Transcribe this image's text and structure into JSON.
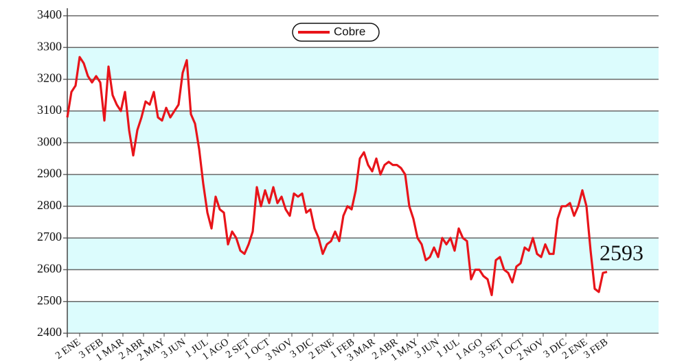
{
  "chart_data": {
    "type": "line",
    "series": [
      {
        "name": "Cobre",
        "color": "#e8141a",
        "values": [
          3080,
          3160,
          3180,
          3270,
          3250,
          3210,
          3190,
          3210,
          3190,
          3070,
          3240,
          3150,
          3120,
          3100,
          3160,
          3040,
          2960,
          3040,
          3080,
          3130,
          3120,
          3160,
          3080,
          3070,
          3110,
          3080,
          3100,
          3120,
          3220,
          3260,
          3090,
          3060,
          2980,
          2870,
          2780,
          2730,
          2830,
          2790,
          2780,
          2680,
          2720,
          2700,
          2660,
          2650,
          2680,
          2720,
          2860,
          2800,
          2850,
          2810,
          2860,
          2810,
          2830,
          2790,
          2770,
          2840,
          2830,
          2840,
          2780,
          2790,
          2730,
          2700,
          2650,
          2680,
          2690,
          2720,
          2690,
          2770,
          2800,
          2790,
          2850,
          2950,
          2970,
          2930,
          2910,
          2950,
          2900,
          2930,
          2940,
          2930,
          2930,
          2920,
          2900,
          2800,
          2760,
          2700,
          2680,
          2630,
          2640,
          2670,
          2640,
          2700,
          2680,
          2700,
          2660,
          2730,
          2700,
          2690,
          2570,
          2600,
          2600,
          2580,
          2570,
          2520,
          2630,
          2640,
          2600,
          2590,
          2560,
          2610,
          2620,
          2670,
          2660,
          2700,
          2650,
          2640,
          2680,
          2650,
          2650,
          2760,
          2800,
          2800,
          2810,
          2770,
          2800,
          2850,
          2800,
          2660,
          2540,
          2530,
          2590,
          2593
        ]
      }
    ],
    "x": [
      0,
      2,
      4,
      6,
      8,
      10,
      12,
      14,
      16,
      18,
      20,
      22,
      24,
      26,
      28,
      30,
      32,
      34,
      36,
      38,
      40,
      42,
      44,
      46,
      48,
      50,
      52,
      54,
      56,
      58,
      60,
      62,
      64,
      66,
      68,
      70,
      72,
      74,
      76,
      78,
      80,
      82,
      84,
      86,
      88,
      90,
      92,
      94,
      96,
      98,
      100,
      102,
      104,
      106,
      108,
      110,
      112,
      114,
      116,
      118,
      120,
      122,
      124,
      126,
      128,
      130,
      132,
      134,
      136,
      138,
      140,
      142,
      144,
      146,
      148,
      150,
      152,
      154,
      156,
      158,
      160,
      162,
      164,
      166,
      168,
      170,
      172,
      174,
      176,
      178,
      180,
      182,
      184,
      186,
      188,
      190,
      192,
      194,
      196,
      198,
      200,
      202,
      204,
      206,
      208,
      210,
      212,
      214,
      216,
      218,
      220,
      222,
      224,
      226,
      228,
      230,
      232,
      234,
      236,
      238,
      240,
      242,
      244,
      246,
      248,
      250,
      252,
      254,
      256,
      258,
      260,
      262
    ],
    "xlim": [
      0,
      287
    ],
    "xticks": [
      {
        "value": 6,
        "label": "2 ENE"
      },
      {
        "value": 17,
        "label": "3 FEB"
      },
      {
        "value": 27,
        "label": "1 MAR"
      },
      {
        "value": 37,
        "label": "2 ABR"
      },
      {
        "value": 47,
        "label": "2 MAY"
      },
      {
        "value": 57,
        "label": "3 JUN"
      },
      {
        "value": 68,
        "label": "1 JUL"
      },
      {
        "value": 78,
        "label": "1 AGO"
      },
      {
        "value": 88,
        "label": "2 SET"
      },
      {
        "value": 98,
        "label": "1 OCT"
      },
      {
        "value": 109,
        "label": "3 NOV"
      },
      {
        "value": 119,
        "label": "3 DIC"
      },
      {
        "value": 129,
        "label": "2 ENE"
      },
      {
        "value": 139,
        "label": "1 FEB"
      },
      {
        "value": 149,
        "label": "3 MAR"
      },
      {
        "value": 160,
        "label": "2 ABR"
      },
      {
        "value": 170,
        "label": "1 MAY"
      },
      {
        "value": 180,
        "label": "3 JUN"
      },
      {
        "value": 190,
        "label": "1 JUL"
      },
      {
        "value": 201,
        "label": "1 AGO"
      },
      {
        "value": 211,
        "label": "3 SET"
      },
      {
        "value": 221,
        "label": "1 OCT"
      },
      {
        "value": 231,
        "label": "2 NOV"
      },
      {
        "value": 242,
        "label": "3 DIC"
      },
      {
        "value": 252,
        "label": "2 ENE"
      },
      {
        "value": 262,
        "label": "3 FEB"
      }
    ],
    "ylim": [
      2400,
      3400
    ],
    "yticks": [
      2400,
      2500,
      2600,
      2700,
      2800,
      2900,
      3000,
      3100,
      3200,
      3300,
      3400
    ],
    "grid": true,
    "band_color": "#dcfcfd",
    "legend": "top",
    "annotation": "2593"
  }
}
